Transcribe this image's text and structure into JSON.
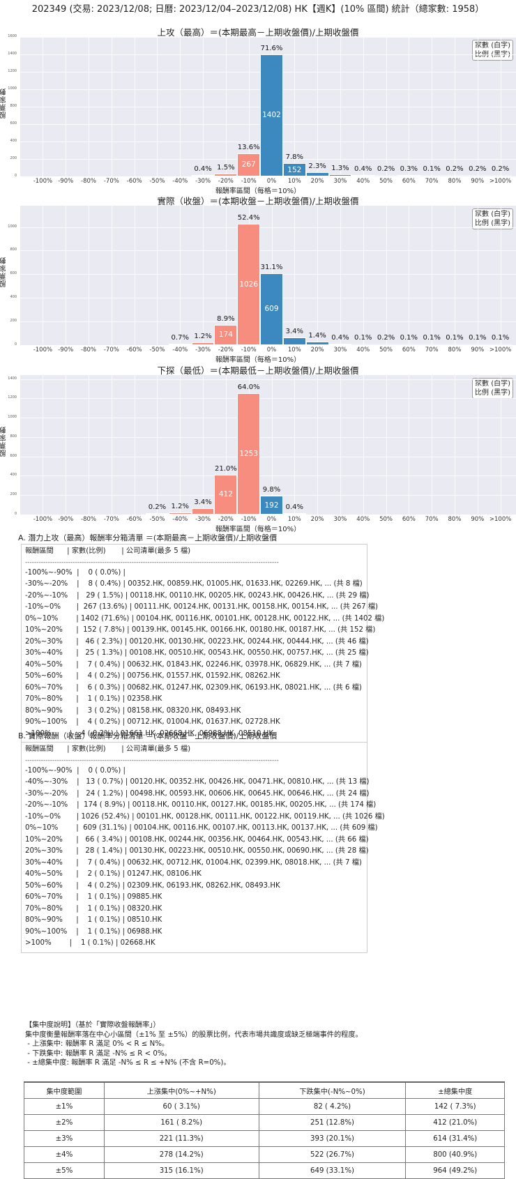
{
  "main_title": "202349 (交易: 2023/12/08; 日曆: 2023/12/04–2023/12/08) HK【週K】(10% 區間) 統計（總家數: 1958）",
  "legend": {
    "line1": "家數 (白字)",
    "line2": "比例 (黑字)"
  },
  "colors": {
    "negative": "#f78d7e",
    "positive": "#3c89bf",
    "plot_bg": "#eaeaf2"
  },
  "chart_data": [
    {
      "type": "bar",
      "title": "上攻（最高）＝(本期最高－上期收盤價)/上期收盤價",
      "xlabel": "報酬率區間（每格＝10%）",
      "ylabel": "股票家數",
      "ylim": [
        0,
        1600
      ],
      "yticks": [
        0,
        200,
        400,
        600,
        800,
        1000,
        1200,
        1400,
        1600
      ],
      "categories": [
        "-100%",
        "-90%",
        "-80%",
        "-70%",
        "-60%",
        "-50%",
        "-40%",
        "-30%",
        "-20%",
        "-10%",
        "0%",
        "10%",
        "20%",
        "30%",
        "40%",
        "50%",
        "60%",
        "70%",
        "80%",
        "90%",
        ">100%"
      ],
      "values": [
        0,
        0,
        0,
        0,
        0,
        0,
        0,
        8,
        29,
        267,
        1402,
        152,
        46,
        25,
        7,
        4,
        6,
        1,
        3,
        4,
        4
      ],
      "pct_labels": [
        "",
        "",
        "",
        "",
        "",
        "",
        "",
        "0.4%",
        "1.5%",
        "13.6%",
        "71.6%",
        "7.8%",
        "2.3%",
        "1.3%",
        "0.4%",
        "0.2%",
        "0.3%",
        "0.1%",
        "0.2%",
        "0.2%",
        "0.2%"
      ],
      "legend_position": "upper right",
      "grid": true
    },
    {
      "type": "bar",
      "title": "實際（收盤）＝(本期收盤－上期收盤價)/上期收盤價",
      "xlabel": "報酬率區間（每格＝10%）",
      "ylabel": "股票家數",
      "ylim": [
        0,
        1180
      ],
      "yticks": [
        0,
        200,
        400,
        600,
        800,
        1000
      ],
      "categories": [
        "-100%",
        "-90%",
        "-80%",
        "-70%",
        "-60%",
        "-50%",
        "-40%",
        "-30%",
        "-20%",
        "-10%",
        "0%",
        "10%",
        "20%",
        "30%",
        "40%",
        "50%",
        "60%",
        "70%",
        "80%",
        "90%",
        ">100%"
      ],
      "values": [
        0,
        0,
        0,
        0,
        0,
        0,
        13,
        24,
        174,
        1026,
        609,
        66,
        28,
        7,
        2,
        4,
        1,
        1,
        1,
        1,
        1
      ],
      "pct_labels": [
        "",
        "",
        "",
        "",
        "",
        "",
        "0.7%",
        "1.2%",
        "8.9%",
        "52.4%",
        "31.1%",
        "3.4%",
        "1.4%",
        "0.4%",
        "0.1%",
        "0.2%",
        "0.1%",
        "0.1%",
        "0.1%",
        "0.1%",
        "0.1%"
      ],
      "legend_position": "upper right",
      "grid": true
    },
    {
      "type": "bar",
      "title": "下探（最低）＝(本期最低－上期收盤價)/上期收盤價",
      "xlabel": "報酬率區間（每格＝10%）",
      "ylabel": "股票家數",
      "ylim": [
        0,
        1440
      ],
      "yticks": [
        0,
        200,
        400,
        600,
        800,
        1000,
        1200,
        1400
      ],
      "categories": [
        "-100%",
        "-90%",
        "-80%",
        "-70%",
        "-60%",
        "-50%",
        "-40%",
        "-30%",
        "-20%",
        "-10%",
        "0%",
        "10%",
        "20%",
        "30%",
        "40%",
        "50%",
        "60%",
        "70%",
        "80%",
        "90%",
        ">100%"
      ],
      "values": [
        0,
        0,
        0,
        0,
        0,
        4,
        24,
        66,
        412,
        1253,
        192,
        8,
        0,
        0,
        0,
        0,
        0,
        0,
        0,
        0,
        0
      ],
      "pct_labels": [
        "",
        "",
        "",
        "",
        "",
        "0.2%",
        "1.2%",
        "3.4%",
        "21.0%",
        "64.0%",
        "9.8%",
        "0.4%",
        "",
        "",
        "",
        "",
        "",
        "",
        "",
        "",
        ""
      ],
      "legend_position": "upper right",
      "grid": true
    }
  ],
  "section_a": {
    "title": "A. 潛力上攻（最高）報酬率分箱清單 ＝(本期最高－上期收盤價)/上期收盤價",
    "header": "報酬區間      | 家數(比例)       | 公司清單(最多 5 檔)",
    "separator": "----------------------------------------------------------------------------------------------------------------",
    "rows": [
      "-100%~-90%  |    0 ( 0.0%) |",
      "-30%~-20%    |    8 ( 0.4%) | 00352.HK, 00859.HK, 01005.HK, 01633.HK, 02269.HK, ... (共 8 檔)",
      "-20%~-10%    |   29 ( 1.5%) | 00118.HK, 00110.HK, 00205.HK, 00243.HK, 00426.HK, ... (共 29 檔)",
      "-10%~0%       |  267 (13.6%) | 00111.HK, 00124.HK, 00131.HK, 00158.HK, 00154.HK, ... (共 267 檔)",
      "0%~10%        | 1402 (71.6%) | 00104.HK, 00116.HK, 00101.HK, 00128.HK, 00122.HK, ... (共 1402 檔)",
      "10%~20%      |  152 ( 7.8%) | 00139.HK, 00145.HK, 00166.HK, 00180.HK, 00187.HK, ... (共 152 檔)",
      "20%~30%      |   46 ( 2.3%) | 00120.HK, 00130.HK, 00223.HK, 00244.HK, 00444.HK, ... (共 46 檔)",
      "30%~40%      |   25 ( 1.3%) | 00108.HK, 00510.HK, 00543.HK, 00550.HK, 00757.HK, ... (共 25 檔)",
      "40%~50%      |    7 ( 0.4%) | 00632.HK, 01843.HK, 02246.HK, 03978.HK, 06829.HK, ... (共 7 檔)",
      "50%~60%      |    4 ( 0.2%) | 00756.HK, 01557.HK, 01592.HK, 08262.HK",
      "60%~70%      |    6 ( 0.3%) | 00682.HK, 01247.HK, 02309.HK, 06193.HK, 08021.HK, ... (共 6 檔)",
      "70%~80%      |    1 ( 0.1%) | 02358.HK",
      "80%~90%      |    3 ( 0.2%) | 08158.HK, 08320.HK, 08493.HK",
      "90%~100%    |    4 ( 0.2%) | 00712.HK, 01004.HK, 01637.HK, 02728.HK",
      ">100%        |    4 ( 0.2%) | 01661.HK, 02668.HK, 06988.HK, 08510.HK"
    ]
  },
  "section_b": {
    "title": "B. 實際報酬（收盤）報酬率分箱清單 ＝(本期收盤－上期收盤價)/上期收盤價",
    "header": "報酬區間      | 家數(比例)       | 公司清單(最多 5 檔)",
    "separator": "----------------------------------------------------------------------------------------------------------------",
    "rows": [
      "-100%~-90%  |    0 ( 0.0%) |",
      "-40%~-30%    |   13 ( 0.7%) | 00120.HK, 00352.HK, 00426.HK, 00471.HK, 00810.HK, ... (共 13 檔)",
      "-30%~-20%    |   24 ( 1.2%) | 00498.HK, 00593.HK, 00606.HK, 00645.HK, 00646.HK, ... (共 24 檔)",
      "-20%~-10%    |  174 ( 8.9%) | 00118.HK, 00110.HK, 00127.HK, 00185.HK, 00205.HK, ... (共 174 檔)",
      "-10%~0%       | 1026 (52.4%) | 00101.HK, 00128.HK, 00111.HK, 00122.HK, 00119.HK, ... (共 1026 檔)",
      "0%~10%        |  609 (31.1%) | 00104.HK, 00116.HK, 00107.HK, 00113.HK, 00137.HK, ... (共 609 檔)",
      "10%~20%      |   66 ( 3.4%) | 00108.HK, 00244.HK, 00356.HK, 00464.HK, 00543.HK, ... (共 66 檔)",
      "20%~30%      |   28 ( 1.4%) | 00130.HK, 00223.HK, 00510.HK, 00550.HK, 00690.HK, ... (共 28 檔)",
      "30%~40%      |    7 ( 0.4%) | 00632.HK, 00712.HK, 01004.HK, 02399.HK, 08018.HK, ... (共 7 檔)",
      "40%~50%      |    2 ( 0.1%) | 01247.HK, 08106.HK",
      "50%~60%      |    4 ( 0.2%) | 02309.HK, 06193.HK, 08262.HK, 08493.HK",
      "60%~70%      |    1 ( 0.1%) | 09885.HK",
      "70%~80%      |    1 ( 0.1%) | 08320.HK",
      "80%~90%      |    1 ( 0.1%) | 08510.HK",
      "90%~100%    |    1 ( 0.1%) | 06988.HK",
      ">100%        |    1 ( 0.1%) | 02668.HK"
    ]
  },
  "concentration": {
    "title": "【集中度說明】（基於「實際收盤報酬率」）",
    "desc": "集中度衡量報酬率落在中心小區間（±1% 至 ±5%）的股票比例，代表市場共識度或缺乏極端事件的程度。",
    "bullets": [
      " - 上漲集中: 報酬率 R 滿足 0% < R ≤ N%。",
      " - 下跌集中: 報酬率 R 滿足 -N% ≤ R < 0%。",
      " - ±總集中度: 報酬率 R 滿足 -N% ≤ R ≤ +N% (不含 R=0%)。"
    ],
    "table": {
      "headers": [
        "集中度範圍",
        "上漲集中(0%~+N%)",
        "下跌集中(-N%~0%)",
        "±總集中度"
      ],
      "rows": [
        [
          "±1%",
          "60 ( 3.1%)",
          "82 ( 4.2%)",
          "142 ( 7.3%)"
        ],
        [
          "±2%",
          "161 ( 8.2%)",
          "251 (12.8%)",
          "412 (21.0%)"
        ],
        [
          "±3%",
          "221 (11.3%)",
          "393 (20.1%)",
          "614 (31.4%)"
        ],
        [
          "±4%",
          "278 (14.2%)",
          "522 (26.7%)",
          "800 (40.9%)"
        ],
        [
          "±5%",
          "315 (16.1%)",
          "649 (33.1%)",
          "964 (49.2%)"
        ]
      ]
    }
  }
}
